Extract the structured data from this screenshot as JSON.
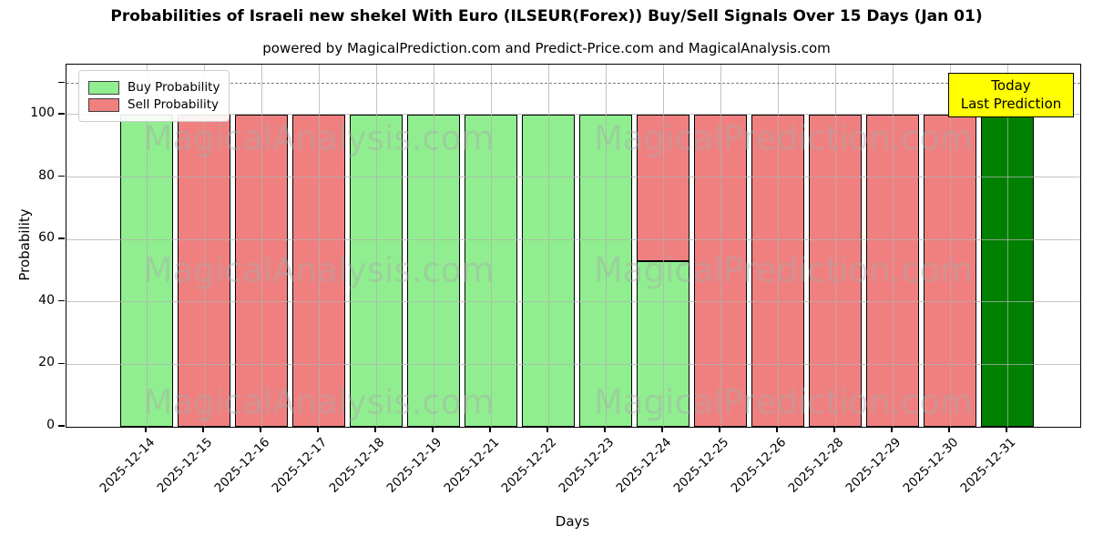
{
  "header": {
    "title": "Probabilities of Israeli new shekel With Euro (ILSEUR(Forex)) Buy/Sell Signals Over 15 Days (Jan 01)",
    "subtitle": "powered by MagicalPrediction.com and Predict-Price.com and MagicalAnalysis.com"
  },
  "axes": {
    "ylabel": "Probability",
    "xlabel": "Days"
  },
  "legend": {
    "items": [
      {
        "label": "Buy Probability",
        "color": "#90ee90"
      },
      {
        "label": "Sell Probability",
        "color": "#f08080"
      }
    ]
  },
  "annotation": {
    "line1": "Today",
    "line2": "Last Prediction",
    "bg_color": "#ffff00"
  },
  "watermarks": {
    "left": "MagicalAnalysis.com",
    "right": "MagicalPrediction.com"
  },
  "chart_data": {
    "type": "bar",
    "stacked": true,
    "title": "Probabilities of Israeli new shekel With Euro (ILSEUR(Forex)) Buy/Sell Signals Over 15 Days (Jan 01)",
    "xlabel": "Days",
    "ylabel": "Probability",
    "ylim": [
      0,
      116
    ],
    "yticks": [
      0,
      20,
      40,
      60,
      80,
      100
    ],
    "dashed_line_y": 110,
    "grid": true,
    "legend_position": "upper-left",
    "categories": [
      "2025-12-14",
      "2025-12-15",
      "2025-12-16",
      "2025-12-17",
      "2025-12-18",
      "2025-12-19",
      "2025-12-21",
      "2025-12-22",
      "2025-12-23",
      "2025-12-24",
      "2025-12-25",
      "2025-12-26",
      "2025-12-28",
      "2025-12-29",
      "2025-12-30",
      "2025-12-31"
    ],
    "series": [
      {
        "name": "Buy Probability",
        "color": "#90ee90",
        "values": [
          100,
          0,
          0,
          0,
          100,
          100,
          100,
          100,
          100,
          53,
          0,
          0,
          0,
          0,
          0,
          100
        ]
      },
      {
        "name": "Sell Probability",
        "color": "#f08080",
        "values": [
          0,
          100,
          100,
          100,
          0,
          0,
          0,
          0,
          0,
          47,
          100,
          100,
          100,
          100,
          100,
          0
        ]
      }
    ],
    "today_index": 15,
    "today_color": "#008000"
  }
}
